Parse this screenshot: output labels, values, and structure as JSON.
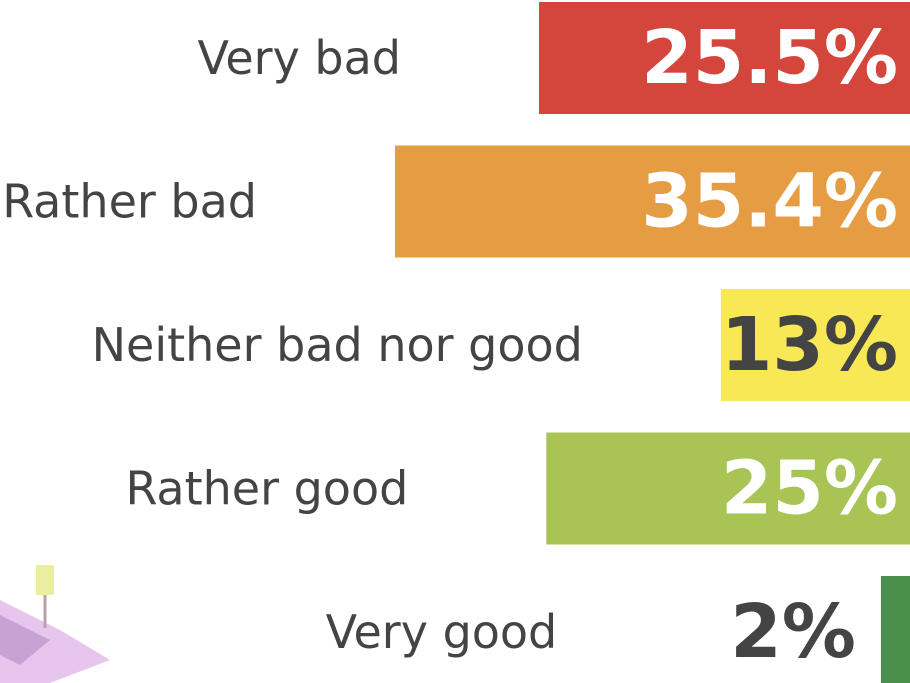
{
  "chart_data": {
    "type": "hbar",
    "categories": [
      "Very bad",
      "Rather bad",
      "Neither bad nor good",
      "Rather good",
      "Very good"
    ],
    "values": [
      25.5,
      35.4,
      13,
      25,
      2
    ],
    "value_labels": [
      "25.5%",
      "35.4%",
      "13%",
      "25%",
      "2%"
    ],
    "colors": [
      "#d4463b",
      "#e69c42",
      "#f8e856",
      "#a8c455",
      "#4a8f4c"
    ]
  }
}
